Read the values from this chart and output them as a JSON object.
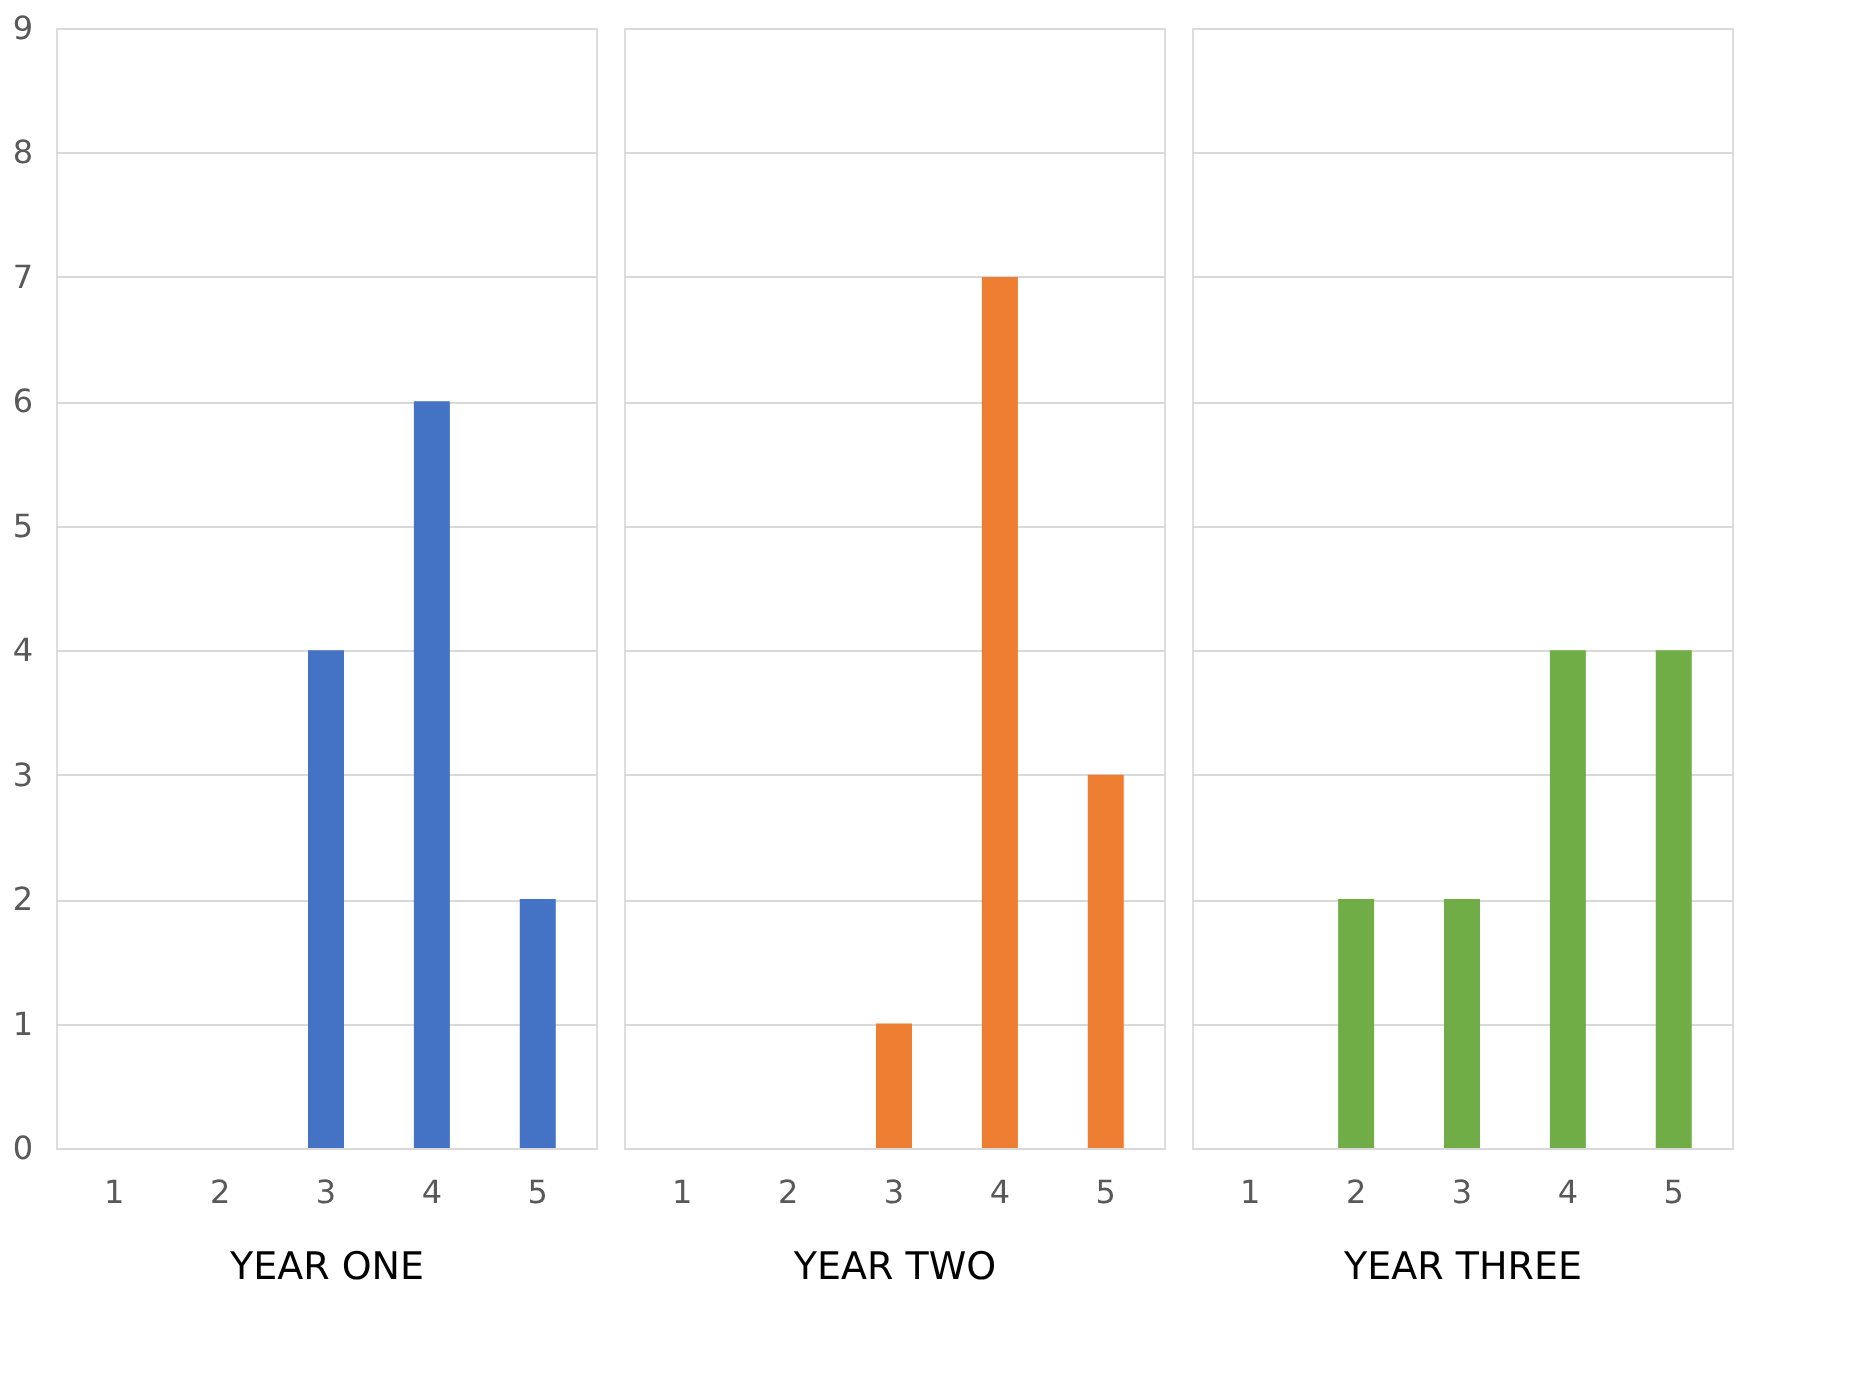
{
  "chart_data": [
    {
      "type": "bar",
      "xlabel": "YEAR ONE",
      "categories": [
        "1",
        "2",
        "3",
        "4",
        "5"
      ],
      "values": [
        0,
        0,
        4,
        6,
        2
      ],
      "color": "#4472c4",
      "ylim": [
        0,
        9
      ],
      "yticks": [
        0,
        1,
        2,
        3,
        4,
        5,
        6,
        7,
        8,
        9
      ],
      "grid": "y"
    },
    {
      "type": "bar",
      "xlabel": "YEAR TWO",
      "categories": [
        "1",
        "2",
        "3",
        "4",
        "5"
      ],
      "values": [
        0,
        0,
        1,
        7,
        3
      ],
      "color": "#ed7d31",
      "ylim": [
        0,
        9
      ],
      "yticks": [
        0,
        1,
        2,
        3,
        4,
        5,
        6,
        7,
        8,
        9
      ],
      "grid": "y",
      "tick_labels": "x"
    },
    {
      "type": "bar",
      "xlabel": "YEAR THREE",
      "categories": [
        "1",
        "2",
        "3",
        "4",
        "5"
      ],
      "values": [
        0,
        2,
        2,
        4,
        4
      ],
      "color": "#70ad47",
      "ylim": [
        0,
        9
      ],
      "yticks": [
        0,
        1,
        2,
        3,
        4,
        5,
        6,
        7,
        8,
        9
      ],
      "grid": "y",
      "tick_labels": "x"
    }
  ]
}
